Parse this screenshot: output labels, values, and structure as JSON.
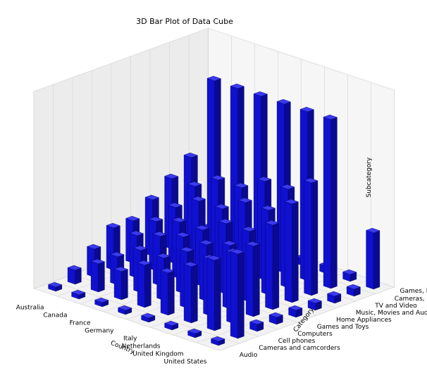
{
  "chart_data": {
    "type": "bar",
    "title": "3D Bar Plot of Data Cube",
    "xlabel": "Country",
    "ylabel": "Category",
    "zlabel": "Subcategory",
    "x_categories": [
      "Australia",
      "Canada",
      "France",
      "Germany",
      "Italy",
      "Netherlands",
      "United Kingdom",
      "United States"
    ],
    "y_categories": [
      "Audio",
      "Cameras and camcorders",
      "Cell phones",
      "Computers",
      "Games and Toys",
      "Home Appliances",
      "Music, Movies and Audio Books",
      "TV and Video",
      "Cameras, Phones and Accessories"
    ],
    "z_tick_labels": [
      "Games, Movies, Music and Accessories"
    ],
    "bar_color": "#1010d0",
    "grid": true,
    "values": [
      [
        0.3,
        0.3,
        0.3,
        0.3,
        0.3,
        0.3,
        0.3,
        0.3
      ],
      [
        1.0,
        2.0,
        2.0,
        3.0,
        3.0,
        4.0,
        5.0,
        6.0
      ],
      [
        2.0,
        2.0,
        3.0,
        3.0,
        4.0,
        4.0,
        5.0,
        0.5
      ],
      [
        3.0,
        3.0,
        3.5,
        4.0,
        4.0,
        4.5,
        5.0,
        0.5
      ],
      [
        3.0,
        3.5,
        4.0,
        4.0,
        5.0,
        5.0,
        6.0,
        0.5
      ],
      [
        4.0,
        4.0,
        5.0,
        5.0,
        6.0,
        6.0,
        7.0,
        0.5
      ],
      [
        5.0,
        5.0,
        6.0,
        6.0,
        7.0,
        7.0,
        8.0,
        0.5
      ],
      [
        6.0,
        12.0,
        12.0,
        12.0,
        12.0,
        12.0,
        12.0,
        0.5
      ],
      [
        0.5,
        0.5,
        0.5,
        0.5,
        0.5,
        0.5,
        0.5,
        4.0
      ]
    ],
    "zlim": [
      0,
      14
    ]
  }
}
